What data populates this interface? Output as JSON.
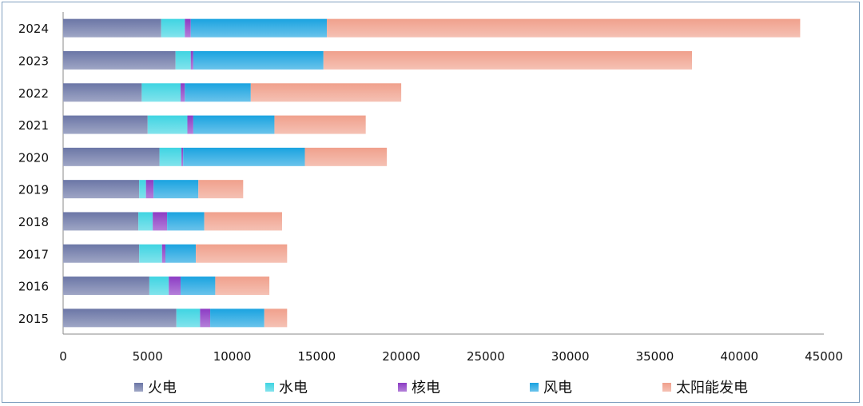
{
  "chart_data": {
    "type": "bar",
    "orientation": "horizontal",
    "stacked": true,
    "categories": [
      "2024",
      "2023",
      "2022",
      "2021",
      "2020",
      "2019",
      "2018",
      "2017",
      "2016",
      "2015"
    ],
    "series": [
      {
        "name": "火电",
        "color": "#6b76a6",
        "values": [
          5800,
          6650,
          4650,
          5000,
          5700,
          4500,
          4450,
          4500,
          5100,
          6700
        ]
      },
      {
        "name": "水电",
        "color": "#3fd4e2",
        "values": [
          1400,
          900,
          2300,
          2350,
          1300,
          400,
          850,
          1350,
          1150,
          1400
        ]
      },
      {
        "name": "核电",
        "color": "#8c3cc4",
        "values": [
          350,
          150,
          250,
          350,
          100,
          450,
          850,
          200,
          700,
          600
        ]
      },
      {
        "name": "风电",
        "color": "#1aa3e0",
        "values": [
          8050,
          7700,
          3900,
          4800,
          7200,
          2650,
          2200,
          1800,
          2050,
          3200
        ]
      },
      {
        "name": "太阳能发电",
        "color": "#f0a08c",
        "values": [
          28000,
          21800,
          8900,
          5400,
          4850,
          2650,
          4600,
          5400,
          3200,
          1350
        ]
      }
    ],
    "xlim": [
      0,
      45000
    ],
    "xticks": [
      "0",
      "5000",
      "10000",
      "15000",
      "20000",
      "25000",
      "30000",
      "35000",
      "40000",
      "45000"
    ],
    "legend_position": "bottom",
    "grid": false
  }
}
